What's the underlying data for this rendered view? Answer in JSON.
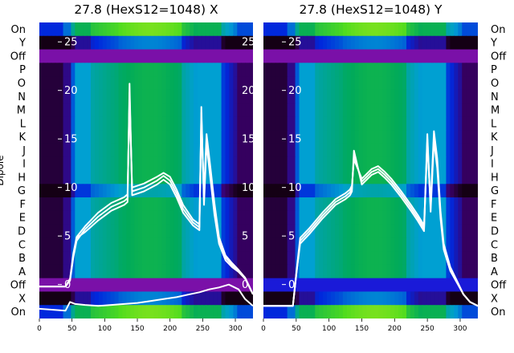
{
  "chart_data": [
    {
      "type": "heatmap",
      "title": "27.8 (HexS12=1048) X",
      "ylabel": "Dipole",
      "dipole_labels": [
        "On",
        "Y",
        "Off",
        "P",
        "O",
        "N",
        "M",
        "L",
        "K",
        "J",
        "I",
        "H",
        "G",
        "F",
        "E",
        "D",
        "C",
        "B",
        "A",
        "Off",
        "X",
        "On"
      ],
      "x_ticks": [
        0,
        50,
        100,
        150,
        200,
        250,
        300
      ],
      "x_range": [
        0,
        327
      ],
      "y_ticks": [
        25,
        20,
        15,
        10,
        5,
        0
      ],
      "y_tick_labels": [
        "25",
        "20",
        "15",
        "10",
        "5",
        "0"
      ],
      "y_range": [
        -3.5,
        27
      ],
      "lines": [
        {
          "x": [
            0,
            40,
            47,
            52,
            57,
            70,
            90,
            110,
            130,
            135,
            138,
            142,
            160,
            180,
            190,
            200,
            210,
            220,
            235,
            245,
            248,
            252,
            256,
            262,
            268,
            275,
            285,
            295,
            305,
            315,
            327
          ],
          "y": [
            -0.2,
            -0.2,
            0.5,
            3,
            4.8,
            5.4,
            6.6,
            7.6,
            8.2,
            8.5,
            20.7,
            9.2,
            9.6,
            10.3,
            10.8,
            10.3,
            9.0,
            7.4,
            6.1,
            5.6,
            18.3,
            8.2,
            14.5,
            10.8,
            7.2,
            4.2,
            2.5,
            1.8,
            1.3,
            0.6,
            -1.0
          ]
        },
        {
          "x": [
            0,
            40,
            47,
            52,
            57,
            70,
            90,
            110,
            130,
            135,
            138,
            142,
            160,
            180,
            190,
            200,
            210,
            220,
            235,
            245,
            248,
            252,
            256,
            262,
            268,
            275,
            285,
            295,
            305,
            315,
            327
          ],
          "y": [
            -0.2,
            -0.2,
            0.4,
            2.8,
            4.5,
            5.7,
            7.0,
            8.0,
            8.6,
            8.9,
            19.8,
            9.6,
            10.0,
            10.7,
            11.2,
            10.7,
            9.4,
            7.8,
            6.4,
            5.9,
            17.7,
            8.8,
            15.0,
            11.5,
            7.8,
            4.5,
            2.8,
            2.0,
            1.4,
            0.7,
            -1.0
          ]
        },
        {
          "x": [
            0,
            40,
            47,
            52,
            57,
            70,
            90,
            110,
            130,
            135,
            138,
            142,
            160,
            180,
            190,
            200,
            210,
            220,
            235,
            245,
            248,
            252,
            256,
            262,
            268,
            275,
            285,
            295,
            305,
            315,
            327
          ],
          "y": [
            -0.2,
            -0.2,
            0.6,
            3.2,
            4.9,
            6.0,
            7.4,
            8.4,
            9.0,
            9.3,
            19.2,
            10.0,
            10.4,
            11.1,
            11.5,
            11.1,
            9.8,
            8.2,
            6.7,
            6.2,
            17.0,
            9.4,
            15.5,
            12.0,
            8.4,
            4.9,
            3.0,
            2.2,
            1.5,
            0.7,
            -1.0
          ]
        },
        {
          "x": [
            0,
            40,
            47,
            55,
            70,
            90,
            110,
            130,
            150,
            170,
            190,
            210,
            230,
            245,
            260,
            275,
            290,
            305,
            315,
            327
          ],
          "y": [
            -2.5,
            -2.7,
            -1.8,
            -2.0,
            -2.1,
            -2.2,
            -2.1,
            -2.0,
            -1.9,
            -1.7,
            -1.5,
            -1.3,
            -1.0,
            -0.8,
            -0.5,
            -0.3,
            0.0,
            -0.5,
            -1.5,
            -2.2
          ]
        }
      ]
    },
    {
      "type": "heatmap",
      "title": "27.8 (HexS12=1048) Y",
      "dipole_labels": [
        "On",
        "Y",
        "Off",
        "P",
        "O",
        "N",
        "M",
        "L",
        "K",
        "J",
        "I",
        "H",
        "G",
        "F",
        "E",
        "D",
        "C",
        "B",
        "A",
        "Off",
        "X",
        "On"
      ],
      "x_ticks": [
        0,
        50,
        100,
        150,
        200,
        250,
        300
      ],
      "x_range": [
        0,
        327
      ],
      "y_ticks": [
        25,
        20,
        15,
        10,
        5,
        0
      ],
      "y_tick_labels": [
        "25",
        "20",
        "15",
        "10",
        "5",
        "0"
      ],
      "y_range": [
        -3.5,
        27
      ],
      "lines": [
        {
          "x": [
            0,
            45,
            50,
            56,
            70,
            90,
            110,
            125,
            132,
            135,
            138,
            150,
            165,
            175,
            185,
            195,
            210,
            225,
            235,
            245,
            250,
            255,
            260,
            265,
            270,
            275,
            285,
            295,
            305,
            315,
            327
          ],
          "y": [
            -2.2,
            -2.2,
            1.0,
            4.2,
            5.2,
            6.8,
            8.2,
            8.8,
            9.2,
            9.6,
            13.8,
            10.3,
            11.3,
            11.6,
            11.0,
            10.3,
            9.0,
            7.6,
            6.6,
            5.5,
            15.5,
            7.5,
            14.8,
            12.0,
            6.8,
            3.6,
            1.4,
            0.2,
            -1.0,
            -1.8,
            -2.2
          ]
        },
        {
          "x": [
            0,
            45,
            50,
            56,
            70,
            90,
            110,
            125,
            132,
            135,
            138,
            150,
            165,
            175,
            185,
            195,
            210,
            225,
            235,
            245,
            250,
            255,
            260,
            265,
            270,
            275,
            285,
            295,
            305,
            315,
            327
          ],
          "y": [
            -2.2,
            -2.2,
            0.9,
            4.5,
            5.5,
            7.1,
            8.5,
            9.1,
            9.5,
            9.9,
            13.3,
            10.6,
            11.6,
            11.9,
            11.3,
            10.6,
            9.3,
            7.9,
            6.9,
            5.8,
            15.0,
            7.9,
            15.3,
            12.5,
            7.2,
            3.9,
            1.6,
            0.3,
            -1.0,
            -1.8,
            -2.2
          ]
        },
        {
          "x": [
            0,
            45,
            50,
            56,
            70,
            90,
            110,
            125,
            132,
            135,
            138,
            150,
            165,
            175,
            185,
            195,
            210,
            225,
            235,
            245,
            250,
            255,
            260,
            265,
            270,
            275,
            285,
            295,
            305,
            315,
            327
          ],
          "y": [
            -2.2,
            -2.2,
            1.1,
            4.8,
            5.8,
            7.4,
            8.8,
            9.4,
            9.8,
            10.2,
            12.9,
            10.9,
            11.9,
            12.2,
            11.6,
            10.9,
            9.6,
            8.2,
            7.2,
            6.1,
            14.5,
            8.3,
            15.8,
            13.0,
            7.6,
            4.2,
            1.8,
            0.4,
            -1.0,
            -1.8,
            -2.2
          ]
        }
      ]
    }
  ]
}
